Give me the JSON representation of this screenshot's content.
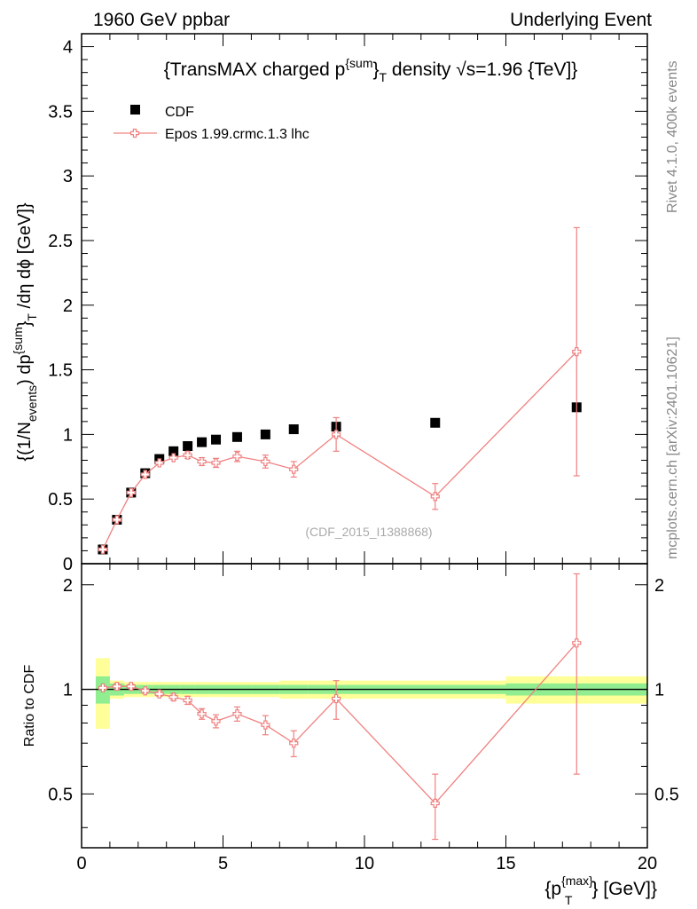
{
  "header": {
    "left": "1960 GeV ppbar",
    "right": "Underlying Event"
  },
  "side_labels": {
    "rivet": "Rivet 4.1.0,  400k events",
    "mcplots": "mcplots.cern.ch [arXiv:2401.10621]"
  },
  "chart_data": [
    {
      "type": "scatter",
      "panel": "main",
      "title_parts": {
        "pre": "{TransMAX charged p",
        "sup": "{sum",
        "mid": "}",
        "sub": "T",
        "post": " density √s=1.96 {TeV]}"
      },
      "ylabel_parts": {
        "a": "{(1/N",
        "a_sub": "events",
        "b": ") dp",
        "b_sup": "{sum",
        "c": "}",
        "c_sub": "T",
        "d": " /dη  dϕ [GeV]}"
      },
      "watermark": "(CDF_2015_I1388868)",
      "xlim": [
        0,
        20
      ],
      "ylim": [
        0,
        4.1
      ],
      "yticks": [
        0,
        0.5,
        1,
        1.5,
        2,
        2.5,
        3,
        3.5,
        4
      ],
      "ytick_labels": [
        "0",
        "0.5",
        "1",
        "1.5",
        "2",
        "2.5",
        "3",
        "3.5",
        "4"
      ],
      "legend": {
        "position": "top-left",
        "data_label": "CDF",
        "mc_label": "Epos 1.99.crmc.1.3 lhc"
      },
      "series": [
        {
          "name": "CDF",
          "color": "#000000",
          "marker": "square",
          "x": [
            0.75,
            1.25,
            1.75,
            2.25,
            2.75,
            3.25,
            3.75,
            4.25,
            4.75,
            5.5,
            6.5,
            7.5,
            9.0,
            12.5,
            17.5
          ],
          "y": [
            0.11,
            0.34,
            0.55,
            0.7,
            0.81,
            0.87,
            0.91,
            0.94,
            0.96,
            0.98,
            1.0,
            1.04,
            1.06,
            1.09,
            1.21
          ]
        },
        {
          "name": "Epos 1.99.crmc.1.3 lhc",
          "color": "#f08080",
          "marker": "open-cross",
          "x": [
            0.75,
            1.25,
            1.75,
            2.25,
            2.75,
            3.25,
            3.75,
            4.25,
            4.75,
            5.5,
            6.5,
            7.5,
            9.0,
            12.5,
            17.5
          ],
          "y": [
            0.11,
            0.34,
            0.55,
            0.69,
            0.78,
            0.82,
            0.84,
            0.79,
            0.78,
            0.83,
            0.79,
            0.73,
            1.0,
            0.52,
            1.64
          ],
          "err": [
            0.005,
            0.01,
            0.01,
            0.015,
            0.015,
            0.02,
            0.025,
            0.03,
            0.035,
            0.04,
            0.05,
            0.06,
            0.13,
            0.1,
            0.96
          ]
        }
      ]
    },
    {
      "type": "scatter",
      "panel": "ratio",
      "ylabel": "Ratio to CDF",
      "xlabel_parts": {
        "a": "{p",
        "a_sup": "{max}",
        "a_sub": "T",
        "b": "} [GeV]}"
      },
      "xlim": [
        0,
        20
      ],
      "ylim": [
        0.35,
        2.3
      ],
      "xticks": [
        0,
        5,
        10,
        15,
        20
      ],
      "xtick_labels": [
        "0",
        "5",
        "10",
        "15",
        "20"
      ],
      "yticks": [
        0.5,
        1,
        2
      ],
      "ytick_labels": [
        "0.5",
        "1",
        "2"
      ],
      "bands": {
        "x_edges": [
          0.5,
          1.0,
          1.5,
          2.0,
          2.5,
          3.0,
          3.5,
          4.0,
          4.5,
          5.0,
          6.0,
          7.0,
          8.0,
          10.0,
          15.0,
          20.0
        ],
        "green_halfwidth": [
          0.09,
          0.04,
          0.03,
          0.03,
          0.03,
          0.03,
          0.03,
          0.03,
          0.03,
          0.03,
          0.03,
          0.03,
          0.03,
          0.03,
          0.04
        ],
        "yellow_halfwidth": [
          0.23,
          0.06,
          0.05,
          0.05,
          0.05,
          0.05,
          0.05,
          0.05,
          0.05,
          0.05,
          0.05,
          0.06,
          0.06,
          0.06,
          0.09
        ]
      },
      "series": [
        {
          "name": "Epos 1.99.crmc.1.3 lhc / CDF",
          "color": "#f08080",
          "x": [
            0.75,
            1.25,
            1.75,
            2.25,
            2.75,
            3.25,
            3.75,
            4.25,
            4.75,
            5.5,
            6.5,
            7.5,
            9.0,
            12.5,
            17.5
          ],
          "y": [
            1.01,
            1.02,
            1.02,
            0.99,
            0.97,
            0.95,
            0.93,
            0.85,
            0.81,
            0.85,
            0.79,
            0.7,
            0.94,
            0.47,
            1.36
          ],
          "err": [
            0.01,
            0.02,
            0.015,
            0.015,
            0.015,
            0.02,
            0.025,
            0.03,
            0.035,
            0.04,
            0.05,
            0.06,
            0.12,
            0.1,
            0.79
          ]
        }
      ]
    }
  ],
  "colors": {
    "green_band": "#90ee90",
    "yellow_band": "#ffff99",
    "mc": "#f08080",
    "data": "#000000",
    "watermark": "#aaaaaa",
    "side_text": "#888888"
  }
}
